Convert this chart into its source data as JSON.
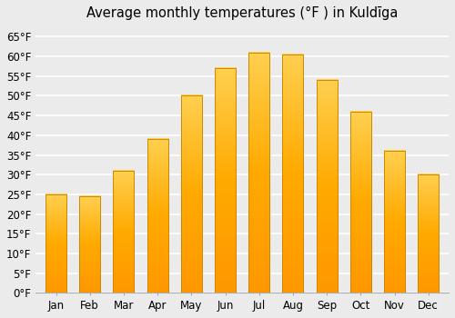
{
  "title": "Average monthly temperatures (°F ) in Kuldīga",
  "months": [
    "Jan",
    "Feb",
    "Mar",
    "Apr",
    "May",
    "Jun",
    "Jul",
    "Aug",
    "Sep",
    "Oct",
    "Nov",
    "Dec"
  ],
  "values": [
    25.0,
    24.5,
    31.0,
    39.0,
    50.0,
    57.0,
    61.0,
    60.5,
    54.0,
    46.0,
    36.0,
    30.0
  ],
  "bar_color_bright": "#FFD050",
  "bar_color_mid": "#FFAA00",
  "bar_color_dark": "#FF9800",
  "bar_edge_color": "#CC8800",
  "background_color": "#ebebeb",
  "grid_color": "#ffffff",
  "ylim": [
    0,
    68
  ],
  "yticks": [
    0,
    5,
    10,
    15,
    20,
    25,
    30,
    35,
    40,
    45,
    50,
    55,
    60,
    65
  ],
  "ytick_labels": [
    "0°F",
    "5°F",
    "10°F",
    "15°F",
    "20°F",
    "25°F",
    "30°F",
    "35°F",
    "40°F",
    "45°F",
    "50°F",
    "55°F",
    "60°F",
    "65°F"
  ],
  "title_fontsize": 10.5,
  "tick_fontsize": 8.5,
  "bar_width": 0.62
}
